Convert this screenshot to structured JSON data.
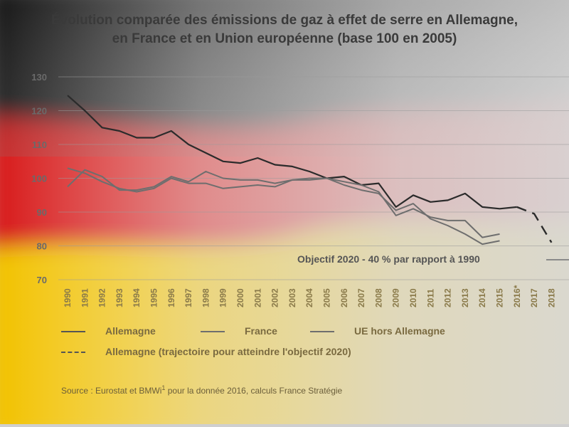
{
  "title_line1": "Évolution comparée des émissions de gaz à effet de serre en Allemagne,",
  "title_line2": "en France et en Union européenne (base 100 en 2005)",
  "source_text": "Source : Eurostat et BMWi",
  "source_sup": "1",
  "source_tail": " pour la donnée 2016, calculs France Stratégie",
  "objective_label": "Objectif 2020 - 40 % par rapport à 1990",
  "legend": {
    "allemagne": "Allemagne",
    "france": "France",
    "ue": "UE hors Allemagne",
    "trajectoire": "Allemagne (trajectoire pour atteindre l'objectif 2020)"
  },
  "colors": {
    "flag_black": "#1a1a1a",
    "flag_red": "#d81e1e",
    "flag_gold": "#f2c200",
    "line_dark": "#2b2b2b",
    "line_grey": "#6e6e6e"
  },
  "chart_data": {
    "type": "line",
    "title": "Évolution comparée des émissions de gaz à effet de serre en Allemagne, en France et en Union européenne (base 100 en 2005)",
    "x_labels": [
      "1990",
      "1991",
      "1992",
      "1993",
      "1994",
      "1995",
      "1996",
      "1997",
      "1998",
      "1999",
      "2000",
      "2001",
      "2002",
      "2003",
      "2004",
      "2005",
      "2006",
      "2007",
      "2008",
      "2009",
      "2010",
      "2011",
      "2012",
      "2013",
      "2014",
      "2015",
      "2016*",
      "2017",
      "2018"
    ],
    "ylim": [
      70,
      130
    ],
    "y_ticks": [
      70,
      80,
      90,
      100,
      110,
      120,
      130
    ],
    "grid": true,
    "series": [
      {
        "name": "Allemagne",
        "style": "solid-dark",
        "x": [
          "1990",
          "1991",
          "1992",
          "1993",
          "1994",
          "1995",
          "1996",
          "1997",
          "1998",
          "1999",
          "2000",
          "2001",
          "2002",
          "2003",
          "2004",
          "2005",
          "2006",
          "2007",
          "2008",
          "2009",
          "2010",
          "2011",
          "2012",
          "2013",
          "2014",
          "2015",
          "2016*"
        ],
        "values": [
          124.5,
          120,
          115,
          114,
          112,
          112,
          114,
          110,
          107.5,
          105,
          104.5,
          106,
          104,
          103.5,
          102,
          100,
          100.5,
          98,
          98.5,
          91.5,
          95,
          93,
          93.5,
          95.5,
          91.5,
          91,
          91.5
        ]
      },
      {
        "name": "France",
        "style": "solid-grey",
        "x": [
          "1990",
          "1991",
          "1992",
          "1993",
          "1994",
          "1995",
          "1996",
          "1997",
          "1998",
          "1999",
          "2000",
          "2001",
          "2002",
          "2003",
          "2004",
          "2005",
          "2006",
          "2007",
          "2008",
          "2009",
          "2010",
          "2011",
          "2012",
          "2013",
          "2014",
          "2015"
        ],
        "values": [
          97.5,
          102.5,
          100.5,
          96.5,
          96.5,
          97.5,
          100.5,
          99,
          102,
          100,
          99.5,
          99.5,
          98.5,
          99.5,
          100,
          100,
          98,
          96.5,
          95.5,
          90.5,
          92.5,
          88,
          86,
          83.5,
          80.5,
          81.5
        ]
      },
      {
        "name": "UE hors Allemagne",
        "style": "solid-grey",
        "x": [
          "1990",
          "1991",
          "1992",
          "1993",
          "1994",
          "1995",
          "1996",
          "1997",
          "1998",
          "1999",
          "2000",
          "2001",
          "2002",
          "2003",
          "2004",
          "2005",
          "2006",
          "2007",
          "2008",
          "2009",
          "2010",
          "2011",
          "2012",
          "2013",
          "2014",
          "2015"
        ],
        "values": [
          103,
          101.5,
          99,
          97,
          96,
          97,
          100,
          98.5,
          98.5,
          97,
          97.5,
          98,
          97.5,
          99.5,
          99.5,
          100,
          99,
          98,
          96,
          89,
          91,
          88.5,
          87.5,
          87.5,
          82.5,
          83.5
        ]
      },
      {
        "name": "Allemagne (trajectoire pour atteindre l'objectif 2020)",
        "style": "dashed-dark",
        "x": [
          "2016*",
          "2017",
          "2018"
        ],
        "values": [
          91.5,
          89.5,
          81
        ]
      }
    ]
  }
}
